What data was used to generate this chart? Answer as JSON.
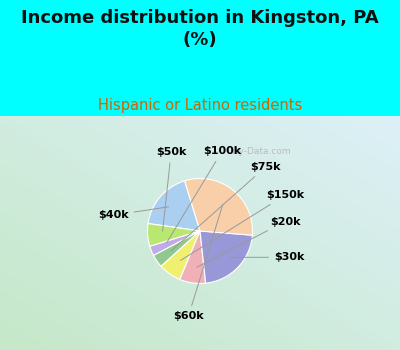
{
  "title": "Income distribution in Kingston, PA\n(%)",
  "subtitle": "Hispanic or Latino residents",
  "title_color": "#111111",
  "subtitle_color": "#cc6600",
  "bg_cyan": "#00ffff",
  "watermark": "City-Data.com",
  "labels": [
    "$40k",
    "$50k",
    "$100k",
    "$75k",
    "$150k",
    "$20k",
    "$30k",
    "$60k"
  ],
  "values": [
    18,
    7,
    3,
    4,
    7,
    8,
    22,
    31
  ],
  "colors": [
    "#aacff0",
    "#b8e870",
    "#c0aae8",
    "#90c890",
    "#f0f070",
    "#f0b0b8",
    "#9898d8",
    "#f8cfa8"
  ],
  "startangle": 107,
  "label_fontsize": 8,
  "title_fontsize": 13,
  "subtitle_fontsize": 10.5,
  "chart_bg_left": "#c8e8c8",
  "chart_bg_right": "#d8f0e8"
}
